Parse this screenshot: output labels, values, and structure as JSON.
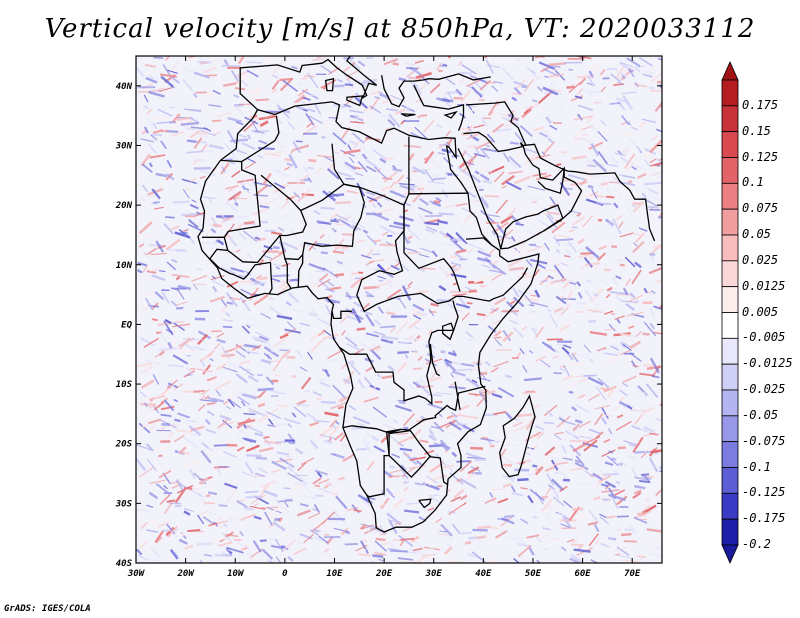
{
  "title": "Vertical velocity [m/s] at 850hPa, VT: 2020033112",
  "credit": "GrADS: IGES/COLA",
  "map": {
    "lat_range": [
      -40,
      45
    ],
    "lon_range": [
      -30,
      76
    ],
    "lat_ticks": [
      {
        "value": 40,
        "label": "40N"
      },
      {
        "value": 30,
        "label": "30N"
      },
      {
        "value": 20,
        "label": "20N"
      },
      {
        "value": 10,
        "label": "10N"
      },
      {
        "value": 0,
        "label": "EQ"
      },
      {
        "value": -10,
        "label": "10S"
      },
      {
        "value": -20,
        "label": "20S"
      },
      {
        "value": -30,
        "label": "30S"
      },
      {
        "value": -40,
        "label": "40S"
      }
    ],
    "lon_ticks": [
      {
        "value": -30,
        "label": "30W"
      },
      {
        "value": -20,
        "label": "20W"
      },
      {
        "value": -10,
        "label": "10W"
      },
      {
        "value": 0,
        "label": "0"
      },
      {
        "value": 10,
        "label": "10E"
      },
      {
        "value": 20,
        "label": "20E"
      },
      {
        "value": 30,
        "label": "30E"
      },
      {
        "value": 40,
        "label": "40E"
      },
      {
        "value": 50,
        "label": "50E"
      },
      {
        "value": 60,
        "label": "60E"
      },
      {
        "value": 70,
        "label": "70E"
      }
    ]
  },
  "colorbar": {
    "levels": [
      {
        "label": "0.175",
        "color": "#b41e23"
      },
      {
        "label": "0.15",
        "color": "#c8323a"
      },
      {
        "label": "0.125",
        "color": "#d84a50"
      },
      {
        "label": "0.1",
        "color": "#e26468"
      },
      {
        "label": "0.075",
        "color": "#ea8084"
      },
      {
        "label": "0.05",
        "color": "#f09ea0"
      },
      {
        "label": "0.025",
        "color": "#f6bcbe"
      },
      {
        "label": "0.0125",
        "color": "#fad8d8"
      },
      {
        "label": "0.005",
        "color": "#fdeeee"
      },
      {
        "label": "-0.005",
        "color": "#ffffff"
      },
      {
        "label": "-0.0125",
        "color": "#e8e8fa"
      },
      {
        "label": "-0.025",
        "color": "#d0d0f6"
      },
      {
        "label": "-0.05",
        "color": "#b4b4f0"
      },
      {
        "label": "-0.075",
        "color": "#9898e8"
      },
      {
        "label": "-0.1",
        "color": "#7c7ce0"
      },
      {
        "label": "-0.125",
        "color": "#5e5ed4"
      },
      {
        "label": "-0.175",
        "color": "#3a3ac4"
      },
      {
        "label": "-0.2",
        "color": "#1e1ea8"
      }
    ],
    "top_arrow_color": "#a01418",
    "bottom_arrow_color": "#1a1a9c"
  },
  "colors": {
    "ascent": "#d23c3c",
    "descent": "#5a5ae0",
    "neutral": "#ffffff",
    "outline": "#000000"
  }
}
